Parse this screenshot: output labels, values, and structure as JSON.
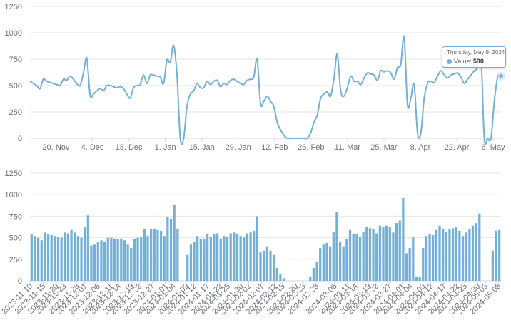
{
  "chart_data": [
    {
      "type": "line",
      "x_start": "2023-11-10",
      "x_end": "2024-05-09",
      "ylim": [
        0,
        1250
      ],
      "yticks": [
        0,
        250,
        500,
        750,
        1000,
        1250
      ],
      "xticks": [
        "20. Nov",
        "4. Dec",
        "18. Dec",
        "1. Jan",
        "15. Jan",
        "29. Jan",
        "12. Feb",
        "26. Feb",
        "11. Mar",
        "25. Mar",
        "8. Apr",
        "22. Apr",
        "6. May"
      ],
      "grid": true,
      "series": [
        {
          "color": "#73b0d6",
          "values": [
            540,
            520,
            500,
            470,
            560,
            540,
            530,
            520,
            510,
            500,
            560,
            550,
            590,
            560,
            520,
            500,
            620,
            760,
            410,
            420,
            450,
            470,
            450,
            500,
            500,
            490,
            480,
            490,
            470,
            420,
            380,
            480,
            500,
            510,
            600,
            520,
            600,
            600,
            590,
            580,
            520,
            740,
            720,
            880,
            600,
            0,
            0,
            300,
            420,
            450,
            520,
            480,
            480,
            540,
            510,
            540,
            550,
            490,
            520,
            510,
            550,
            560,
            540,
            520,
            510,
            550,
            560,
            580,
            750,
            330,
            350,
            400,
            350,
            300,
            150,
            80,
            30,
            0,
            0,
            0,
            0,
            0,
            0,
            0,
            50,
            150,
            220,
            380,
            420,
            440,
            400,
            570,
            800,
            450,
            400,
            480,
            590,
            540,
            540,
            510,
            570,
            620,
            610,
            600,
            550,
            640,
            630,
            640,
            620,
            560,
            670,
            700,
            960,
            320,
            380,
            510,
            50,
            50,
            380,
            520,
            540,
            530,
            590,
            640,
            600,
            570,
            600,
            610,
            620,
            580,
            520,
            560,
            600,
            640,
            670,
            780,
            0,
            0,
            0,
            350,
            580,
            590
          ]
        }
      ],
      "tooltip": {
        "date": "Thursday, May 9, 2024",
        "label": "Value:",
        "value": "590"
      }
    },
    {
      "type": "bar",
      "ylim": [
        0,
        1250
      ],
      "yticks": [
        0,
        250,
        500,
        750,
        1000,
        1250
      ],
      "xticks": [
        "2023-11-10",
        "2023-11-15",
        "2023-11-20",
        "2023-11-23",
        "2023-11-28",
        "2023-12-01",
        "2023-12-06",
        "2023-12-11",
        "2023-12-14",
        "2023-12-19",
        "2023-12-22",
        "2023-12-27",
        "2024-01-01",
        "2024-01-04",
        "2024-01-09",
        "2024-01-12",
        "2024-01-17",
        "2024-01-22",
        "2024-01-25",
        "2024-01-30",
        "2024-02-02",
        "2024-02-07",
        "2024-02-12",
        "2024-02-15",
        "2024-02-20",
        "2024-02-23",
        "2024-02-28",
        "2024-03-06",
        "2024-03-11",
        "2024-03-14",
        "2024-03-19",
        "2024-03-22",
        "2024-03-27",
        "2024-04-01",
        "2024-04-04",
        "2024-04-09",
        "2024-04-12",
        "2024-04-17",
        "2024-04-22",
        "2024-04-25",
        "2024-04-30",
        "2024-05-03",
        "2024-05-08"
      ],
      "grid": true,
      "series": [
        {
          "color": "#73b0d6",
          "values": [
            540,
            520,
            500,
            470,
            560,
            540,
            530,
            520,
            510,
            500,
            560,
            550,
            590,
            560,
            520,
            500,
            620,
            760,
            410,
            420,
            450,
            470,
            450,
            500,
            500,
            490,
            480,
            490,
            470,
            420,
            380,
            480,
            500,
            510,
            600,
            520,
            600,
            600,
            590,
            580,
            520,
            740,
            720,
            880,
            600,
            0,
            0,
            300,
            420,
            450,
            520,
            480,
            480,
            540,
            510,
            540,
            550,
            490,
            520,
            510,
            550,
            560,
            540,
            520,
            510,
            550,
            560,
            580,
            750,
            330,
            350,
            400,
            350,
            300,
            150,
            80,
            30,
            0,
            0,
            0,
            0,
            0,
            0,
            0,
            50,
            150,
            220,
            380,
            420,
            440,
            400,
            570,
            800,
            450,
            400,
            480,
            590,
            540,
            540,
            510,
            570,
            620,
            610,
            600,
            550,
            640,
            630,
            640,
            620,
            560,
            670,
            700,
            960,
            320,
            380,
            510,
            50,
            50,
            380,
            520,
            540,
            530,
            590,
            640,
            600,
            570,
            600,
            610,
            620,
            580,
            520,
            560,
            600,
            640,
            670,
            780,
            0,
            0,
            0,
            350,
            580,
            590
          ]
        }
      ]
    }
  ]
}
